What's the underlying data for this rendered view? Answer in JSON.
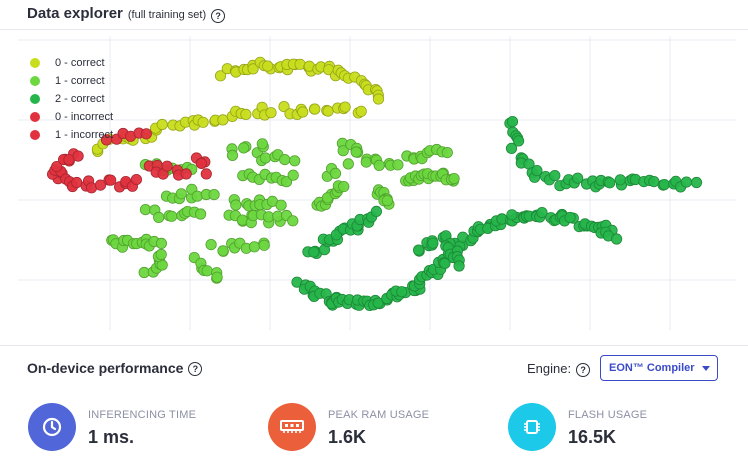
{
  "data_explorer": {
    "title": "Data explorer",
    "subtitle": "(full training set)",
    "help_glyph": "?"
  },
  "legend": [
    {
      "label": "0 - correct",
      "color": "#c8dd1e"
    },
    {
      "label": "1 - correct",
      "color": "#6cd73f"
    },
    {
      "label": "2 - correct",
      "color": "#26b54a"
    },
    {
      "label": "0 - incorrect",
      "color": "#e0323f"
    },
    {
      "label": "1 - incorrect",
      "color": "#e0323f"
    }
  ],
  "chart_data": {
    "type": "scatter",
    "grid": true,
    "legend_position": "top-left",
    "series": [
      {
        "name": "0 - correct",
        "color": "#c8dd1e",
        "clusters": [
          {
            "path": [
              [
                225,
                72
              ],
              [
                260,
                66
              ],
              [
                300,
                66
              ],
              [
                335,
                72
              ],
              [
                360,
                82
              ],
              [
                375,
                93
              ],
              [
                380,
                100
              ]
            ],
            "n": 40
          },
          {
            "path": [
              [
                95,
                148
              ],
              [
                130,
                138
              ],
              [
                170,
                128
              ],
              [
                210,
                118
              ],
              [
                250,
                112
              ],
              [
                300,
                110
              ],
              [
                330,
                110
              ],
              [
                360,
                108
              ]
            ],
            "n": 45
          }
        ]
      },
      {
        "name": "1 - correct",
        "color": "#6cd73f",
        "clusters": [
          {
            "path": [
              [
                108,
                243
              ],
              [
                160,
                244
              ]
            ],
            "n": 14
          },
          {
            "path": [
              [
                148,
                270
              ],
              [
                165,
                258
              ]
            ],
            "n": 8
          },
          {
            "path": [
              [
                198,
                262
              ],
              [
                218,
                278
              ]
            ],
            "n": 8
          },
          {
            "path": [
              [
                215,
                247
              ],
              [
                265,
                247
              ]
            ],
            "n": 10
          },
          {
            "path": [
              [
                150,
                214
              ],
              [
                200,
                212
              ]
            ],
            "n": 10
          },
          {
            "path": [
              [
                165,
                195
              ],
              [
                210,
                192
              ]
            ],
            "n": 9
          },
          {
            "path": [
              [
                148,
                167
              ],
              [
                190,
                170
              ]
            ],
            "n": 8
          },
          {
            "path": [
              [
                230,
                218
              ],
              [
                290,
                220
              ]
            ],
            "n": 14
          },
          {
            "path": [
              [
                232,
                203
              ],
              [
                280,
                204
              ]
            ],
            "n": 10
          },
          {
            "path": [
              [
                240,
                178
              ],
              [
                290,
                178
              ]
            ],
            "n": 10
          },
          {
            "path": [
              [
                230,
                152
              ],
              [
                265,
                148
              ]
            ],
            "n": 7
          },
          {
            "path": [
              [
                262,
                160
              ],
              [
                295,
                158
              ]
            ],
            "n": 6
          },
          {
            "path": [
              [
                315,
                205
              ],
              [
                345,
                188
              ]
            ],
            "n": 12
          },
          {
            "path": [
              [
                330,
                175
              ],
              [
                345,
                168
              ]
            ],
            "n": 4
          },
          {
            "path": [
              [
                340,
                145
              ],
              [
                375,
                162
              ],
              [
                395,
                162
              ]
            ],
            "n": 14
          },
          {
            "path": [
              [
                375,
                190
              ],
              [
                390,
                205
              ]
            ],
            "n": 9
          },
          {
            "path": [
              [
                405,
                178
              ],
              [
                440,
                175
              ],
              [
                455,
                182
              ]
            ],
            "n": 20
          },
          {
            "path": [
              [
                410,
                160
              ],
              [
                445,
                150
              ]
            ],
            "n": 10
          }
        ]
      },
      {
        "name": "2 - correct",
        "color": "#26b54a",
        "clusters": [
          {
            "path": [
              [
                510,
                120
              ],
              [
                515,
                150
              ],
              [
                530,
                172
              ],
              [
                560,
                182
              ],
              [
                600,
                183
              ],
              [
                650,
                180
              ],
              [
                695,
                185
              ]
            ],
            "n": 45
          },
          {
            "path": [
              [
                310,
                255
              ],
              [
                345,
                230
              ],
              [
                375,
                215
              ]
            ],
            "n": 24
          },
          {
            "path": [
              [
                300,
                285
              ],
              [
                330,
                302
              ],
              [
                370,
                302
              ],
              [
                410,
                290
              ],
              [
                440,
                268
              ],
              [
                460,
                245
              ],
              [
                490,
                225
              ],
              [
                520,
                215
              ],
              [
                560,
                218
              ],
              [
                600,
                228
              ],
              [
                615,
                238
              ]
            ],
            "n": 120
          },
          {
            "path": [
              [
                420,
                248
              ],
              [
                445,
                240
              ],
              [
                460,
                265
              ]
            ],
            "n": 20
          }
        ]
      },
      {
        "name": "0 - incorrect",
        "color": "#e0323f",
        "clusters": [
          {
            "path": [
              [
                55,
                180
              ],
              [
                62,
                162
              ],
              [
                75,
                155
              ]
            ],
            "n": 12
          },
          {
            "path": [
              [
                200,
                158
              ],
              [
                207,
                170
              ]
            ],
            "n": 5
          },
          {
            "path": [
              [
                105,
                137
              ],
              [
                145,
                132
              ]
            ],
            "n": 6
          }
        ]
      },
      {
        "name": "1 - incorrect",
        "color": "#e0323f",
        "clusters": [
          {
            "path": [
              [
                65,
                182
              ],
              [
                90,
                185
              ]
            ],
            "n": 8
          },
          {
            "path": [
              [
                105,
                183
              ],
              [
                140,
                182
              ]
            ],
            "n": 8
          },
          {
            "path": [
              [
                148,
                168
              ],
              [
                185,
                172
              ]
            ],
            "n": 8
          }
        ]
      }
    ]
  },
  "performance": {
    "title": "On-device performance",
    "help_glyph": "?",
    "engine_label": "Engine:",
    "engine_value": "EON™ Compiler"
  },
  "metrics": [
    {
      "label": "INFERENCING TIME",
      "value": "1 ms.",
      "icon": "clock-icon",
      "color": "#5166d8"
    },
    {
      "label": "PEAK RAM USAGE",
      "value": "1.6K",
      "icon": "memory-icon",
      "color": "#ec5f3b"
    },
    {
      "label": "FLASH USAGE",
      "value": "16.5K",
      "icon": "chip-icon",
      "color": "#1dc9e8"
    }
  ]
}
